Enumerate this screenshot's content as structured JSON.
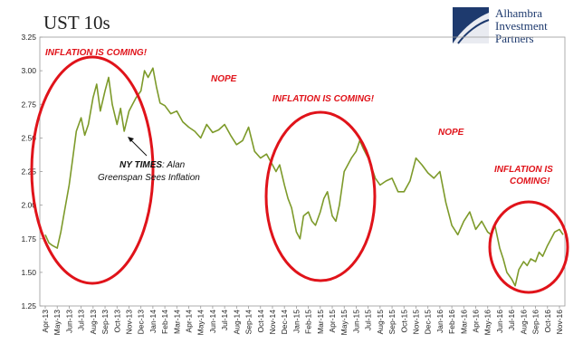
{
  "chart_data": {
    "type": "line",
    "title": "UST 10s",
    "xlabel": "",
    "ylabel": "",
    "ylim": [
      1.25,
      3.25
    ],
    "yticks": [
      "1.25",
      "1.50",
      "1.75",
      "2.00",
      "2.25",
      "2.50",
      "2.75",
      "3.00",
      "3.25"
    ],
    "ytick_values": [
      1.25,
      1.5,
      1.75,
      2.0,
      2.25,
      2.5,
      2.75,
      3.0,
      3.25
    ],
    "grid": false,
    "xticks": [
      "Apr-13",
      "May-13",
      "Jun-13",
      "Jul-13",
      "Aug-13",
      "Sep-13",
      "Oct-13",
      "Nov-13",
      "Dec-13",
      "Jan-14",
      "Feb-14",
      "Mar-14",
      "Apr-14",
      "May-14",
      "Jun-14",
      "Jul-14",
      "Aug-14",
      "Sep-14",
      "Oct-14",
      "Nov-14",
      "Dec-14",
      "Jan-15",
      "Feb-15",
      "Mar-15",
      "Apr-15",
      "May-15",
      "Jun-15",
      "Jul-15",
      "Aug-15",
      "Sep-15",
      "Oct-15",
      "Nov-15",
      "Dec-15",
      "Jan-16",
      "Feb-16",
      "Mar-16",
      "Apr-16",
      "May-16",
      "Jun-16",
      "Jul-16",
      "Aug-16",
      "Sep-16",
      "Oct-16",
      "Nov-16"
    ],
    "line_color": "#7d9a2a",
    "series": [
      {
        "x": [
          0,
          0.3,
          0.6,
          1.0,
          1.3,
          1.6,
          2.0,
          2.3,
          2.6,
          3.0,
          3.3,
          3.6,
          4.0,
          4.3,
          4.6,
          5.0,
          5.3,
          5.6,
          6.0,
          6.3,
          6.6,
          7.0,
          7.3,
          7.6,
          8.0,
          8.3,
          8.6,
          9.0,
          9.3,
          9.6,
          10.0,
          10.5,
          11.0,
          11.5,
          12.0,
          12.5,
          13.0,
          13.5,
          14.0,
          14.5,
          15.0,
          15.5,
          16.0,
          16.5,
          17.0,
          17.5,
          18.0,
          18.5,
          19.0,
          19.3,
          19.6,
          20.0,
          20.3,
          20.6,
          21.0,
          21.3,
          21.6,
          22.0,
          22.3,
          22.6,
          23.0,
          23.3,
          23.6,
          24.0,
          24.3,
          24.6,
          25.0,
          25.3,
          25.6,
          26.0,
          26.3,
          26.6,
          27.0,
          27.3,
          27.6,
          28.0,
          28.5,
          29.0,
          29.5,
          30.0,
          30.5,
          31.0,
          31.5,
          32.0,
          32.5,
          33.0,
          33.5,
          34.0,
          34.5,
          35.0,
          35.5,
          36.0,
          36.5,
          37.0,
          37.3,
          37.6,
          38.0,
          38.3,
          38.6,
          39.0,
          39.3,
          39.6,
          40.0,
          40.3,
          40.6,
          41.0,
          41.3,
          41.6,
          42.0,
          42.3,
          42.6,
          43.0,
          43.3
        ],
        "values": [
          1.78,
          1.72,
          1.7,
          1.68,
          1.8,
          1.95,
          2.15,
          2.35,
          2.55,
          2.65,
          2.52,
          2.6,
          2.8,
          2.9,
          2.7,
          2.85,
          2.95,
          2.75,
          2.6,
          2.72,
          2.55,
          2.7,
          2.75,
          2.8,
          2.85,
          3.0,
          2.95,
          3.02,
          2.88,
          2.76,
          2.74,
          2.68,
          2.7,
          2.62,
          2.58,
          2.55,
          2.5,
          2.6,
          2.54,
          2.56,
          2.6,
          2.52,
          2.45,
          2.48,
          2.58,
          2.4,
          2.35,
          2.38,
          2.3,
          2.25,
          2.3,
          2.15,
          2.05,
          1.98,
          1.8,
          1.75,
          1.92,
          1.95,
          1.88,
          1.85,
          1.95,
          2.05,
          2.1,
          1.92,
          1.88,
          2.0,
          2.25,
          2.3,
          2.35,
          2.4,
          2.48,
          2.42,
          2.35,
          2.28,
          2.2,
          2.15,
          2.18,
          2.2,
          2.1,
          2.1,
          2.18,
          2.35,
          2.3,
          2.24,
          2.2,
          2.25,
          2.02,
          1.85,
          1.78,
          1.88,
          1.95,
          1.82,
          1.88,
          1.8,
          1.78,
          1.85,
          1.68,
          1.6,
          1.5,
          1.45,
          1.4,
          1.52,
          1.58,
          1.55,
          1.6,
          1.58,
          1.65,
          1.62,
          1.7,
          1.75,
          1.8,
          1.82,
          1.78
        ]
      }
    ],
    "annotations": [
      {
        "text": "INFLATION IS COMING!",
        "color": "#e0131a"
      },
      {
        "text": "NOPE",
        "color": "#e0131a"
      },
      {
        "text": "INFLATION IS COMING!",
        "color": "#e0131a"
      },
      {
        "text": "NOPE",
        "color": "#e0131a"
      },
      {
        "text": "INFLATION IS",
        "color": "#e0131a"
      },
      {
        "text": "COMING!",
        "color": "#e0131a"
      }
    ],
    "nyt_note": {
      "bold": "NY TIMES",
      "rest": ": Alan",
      "line2": "Greenspan Sees Inflation"
    }
  },
  "logo": {
    "line1": "Alhambra",
    "line2": "Investment",
    "line3": "Partners",
    "color": "#1e3a6e"
  }
}
